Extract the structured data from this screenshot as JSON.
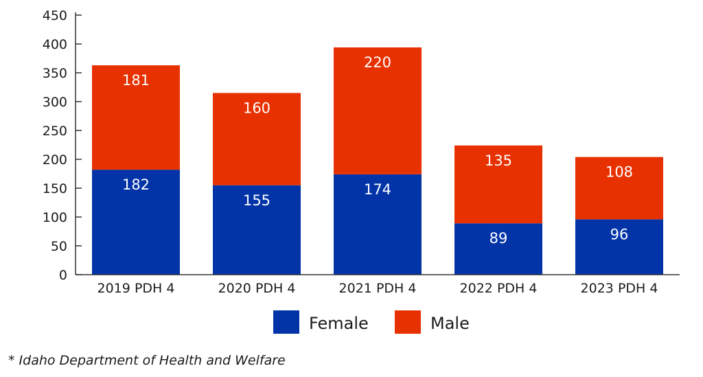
{
  "chart_data": {
    "type": "bar",
    "stacked": true,
    "title": "",
    "xlabel": "",
    "ylabel": "",
    "categories": [
      "2019 PDH 4",
      "2020 PDH 4",
      "2021 PDH 4",
      "2022 PDH 4",
      "2023 PDH 4"
    ],
    "series": [
      {
        "name": "Female",
        "color": "#0234a8",
        "values": [
          182,
          155,
          174,
          89,
          96
        ]
      },
      {
        "name": "Male",
        "color": "#e83100",
        "values": [
          181,
          160,
          220,
          135,
          108
        ]
      }
    ],
    "ylim": [
      0,
      450
    ],
    "yticks": [
      0,
      50,
      100,
      150,
      200,
      250,
      300,
      350,
      400,
      450
    ],
    "grid": false,
    "legend": "bottom-center",
    "data_labels": true
  },
  "footnote": "* Idaho Department of Health and Welfare"
}
